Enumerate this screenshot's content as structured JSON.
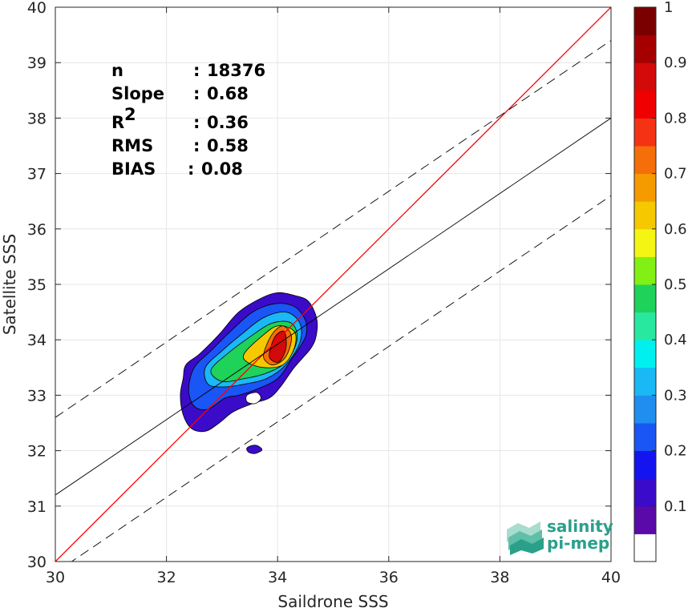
{
  "chart_data": {
    "type": "heatmap",
    "title": "",
    "xlabel": "Saildrone SSS",
    "ylabel": "Satellite SSS",
    "xlim": [
      30,
      40
    ],
    "ylim": [
      30,
      40
    ],
    "x_ticks": [
      "30",
      "32",
      "34",
      "36",
      "38",
      "40"
    ],
    "y_ticks": [
      "30",
      "31",
      "32",
      "33",
      "34",
      "35",
      "36",
      "37",
      "38",
      "39",
      "40"
    ],
    "grid": true,
    "colorbar": {
      "range": [
        0,
        1
      ],
      "tick_labels": [
        "0.1",
        "0.2",
        "0.3",
        "0.4",
        "0.5",
        "0.6",
        "0.7",
        "0.8",
        "0.9",
        "1"
      ],
      "colors": [
        "#ffffff",
        "#5a0aa8",
        "#3a0bc8",
        "#1414f0",
        "#1a55f5",
        "#1f8ef0",
        "#1ab8f5",
        "#00f0f0",
        "#28e8a0",
        "#1ed25a",
        "#82f014",
        "#f5f514",
        "#f5c800",
        "#f59b00",
        "#f56e0a",
        "#f53214",
        "#f00000",
        "#d20a0a",
        "#a50000",
        "#7a0000"
      ]
    },
    "lines": [
      {
        "name": "identity",
        "color": "#ff0000",
        "style": "solid",
        "slope": 1.0,
        "intercept": 0.0
      },
      {
        "name": "regression",
        "color": "#000000",
        "style": "solid",
        "slope": 0.68,
        "intercept": 10.8
      },
      {
        "name": "upper-band",
        "color": "#000000",
        "style": "dashed",
        "slope": 0.68,
        "intercept": 12.2
      },
      {
        "name": "lower-band",
        "color": "#000000",
        "style": "dashed",
        "slope": 0.68,
        "intercept": 9.4
      }
    ],
    "contours": [
      {
        "level": 0.05,
        "color": "#3a0bc8",
        "points": [
          [
            32.35,
            33.55
          ],
          [
            32.6,
            33.75
          ],
          [
            32.95,
            34.1
          ],
          [
            33.3,
            34.5
          ],
          [
            33.7,
            34.75
          ],
          [
            34.0,
            34.85
          ],
          [
            34.3,
            34.8
          ],
          [
            34.55,
            34.7
          ],
          [
            34.7,
            34.4
          ],
          [
            34.7,
            34.1
          ],
          [
            34.6,
            33.85
          ],
          [
            34.3,
            33.5
          ],
          [
            34.05,
            33.15
          ],
          [
            33.85,
            32.95
          ],
          [
            33.55,
            32.85
          ],
          [
            33.2,
            32.7
          ],
          [
            32.95,
            32.5
          ],
          [
            32.7,
            32.35
          ],
          [
            32.45,
            32.4
          ],
          [
            32.3,
            32.65
          ],
          [
            32.25,
            33.0
          ],
          [
            32.3,
            33.3
          ]
        ]
      },
      {
        "level": 0.15,
        "color": "#1a55f5",
        "points": [
          [
            32.5,
            33.5
          ],
          [
            32.8,
            33.8
          ],
          [
            33.15,
            34.15
          ],
          [
            33.55,
            34.5
          ],
          [
            33.95,
            34.65
          ],
          [
            34.3,
            34.6
          ],
          [
            34.5,
            34.35
          ],
          [
            34.5,
            34.05
          ],
          [
            34.25,
            33.65
          ],
          [
            34.0,
            33.3
          ],
          [
            33.6,
            33.1
          ],
          [
            33.3,
            33.0
          ],
          [
            33.05,
            32.95
          ],
          [
            32.75,
            32.75
          ],
          [
            32.5,
            32.8
          ],
          [
            32.4,
            33.1
          ]
        ]
      },
      {
        "level": 0.35,
        "color": "#1ab8f5",
        "points": [
          [
            32.7,
            33.5
          ],
          [
            33.0,
            33.8
          ],
          [
            33.35,
            34.1
          ],
          [
            33.75,
            34.4
          ],
          [
            34.15,
            34.5
          ],
          [
            34.4,
            34.3
          ],
          [
            34.4,
            33.95
          ],
          [
            34.15,
            33.55
          ],
          [
            33.8,
            33.3
          ],
          [
            33.4,
            33.2
          ],
          [
            33.05,
            33.15
          ],
          [
            32.75,
            33.2
          ]
        ]
      },
      {
        "level": 0.5,
        "color": "#1ed25a",
        "points": [
          [
            32.8,
            33.45
          ],
          [
            33.1,
            33.75
          ],
          [
            33.5,
            34.05
          ],
          [
            33.9,
            34.3
          ],
          [
            34.25,
            34.3
          ],
          [
            34.35,
            34.0
          ],
          [
            34.15,
            33.6
          ],
          [
            33.8,
            33.4
          ],
          [
            33.4,
            33.3
          ],
          [
            33.0,
            33.25
          ]
        ]
      },
      {
        "level": 0.65,
        "color": "#f5c800",
        "points": [
          [
            33.4,
            33.75
          ],
          [
            33.7,
            34.05
          ],
          [
            34.0,
            34.25
          ],
          [
            34.3,
            34.15
          ],
          [
            34.3,
            33.85
          ],
          [
            34.1,
            33.55
          ],
          [
            33.75,
            33.5
          ],
          [
            33.45,
            33.6
          ]
        ]
      },
      {
        "level": 0.8,
        "color": "#f56e0a",
        "points": [
          [
            33.75,
            33.75
          ],
          [
            33.9,
            34.1
          ],
          [
            34.1,
            34.25
          ],
          [
            34.25,
            34.05
          ],
          [
            34.15,
            33.7
          ],
          [
            33.95,
            33.55
          ],
          [
            33.8,
            33.6
          ]
        ]
      },
      {
        "level": 0.9,
        "color": "#d20a0a",
        "points": [
          [
            33.85,
            33.7
          ],
          [
            33.95,
            34.05
          ],
          [
            34.12,
            34.15
          ],
          [
            34.15,
            33.85
          ],
          [
            34.02,
            33.6
          ]
        ]
      }
    ],
    "holes": [
      {
        "color": "#ffffff",
        "points": [
          [
            33.45,
            33.0
          ],
          [
            33.62,
            33.05
          ],
          [
            33.7,
            32.95
          ],
          [
            33.6,
            32.85
          ],
          [
            33.45,
            32.88
          ]
        ]
      }
    ],
    "islands": [
      {
        "color": "#3a0bc8",
        "points": [
          [
            33.45,
            32.05
          ],
          [
            33.6,
            32.1
          ],
          [
            33.72,
            32.02
          ],
          [
            33.6,
            31.95
          ],
          [
            33.48,
            31.97
          ]
        ]
      }
    ],
    "stats": [
      {
        "label": "n",
        "sep": ":",
        "value": "18376"
      },
      {
        "label": "Slope",
        "sep": ":",
        "value": "0.68"
      },
      {
        "label": "R",
        "sup": "2",
        "sep": ":",
        "value": "0.36"
      },
      {
        "label": "RMS",
        "sep": ":",
        "value": "0.58"
      },
      {
        "label": "BIAS",
        "sep": ":",
        "value": "0.08"
      }
    ]
  },
  "logo": {
    "line1": "salinity",
    "line2": "pi-mep",
    "color": "#2aa08a"
  }
}
